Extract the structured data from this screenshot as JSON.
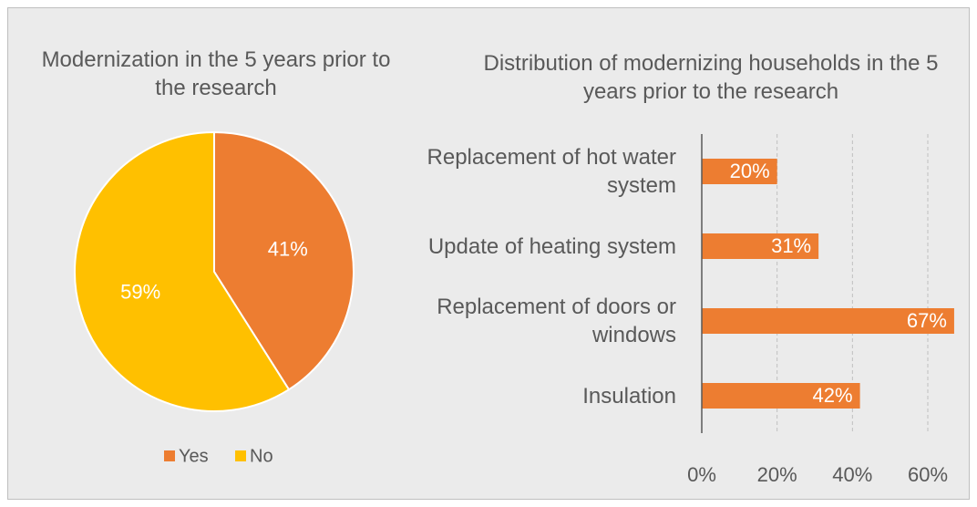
{
  "chart_data": [
    {
      "type": "pie",
      "title": "Modernization in the 5 years prior to the research",
      "categories": [
        "Yes",
        "No"
      ],
      "values": [
        41,
        59
      ],
      "value_labels": [
        "41%",
        "59%"
      ],
      "colors": [
        "#ed7d31",
        "#ffc000"
      ],
      "legend": "bottom"
    },
    {
      "type": "bar",
      "orientation": "horizontal",
      "title": "Distribution of modernizing households in the 5 years prior to the research",
      "categories": [
        "Replacement of hot water system",
        "Update of heating system",
        "Replacement of doors or windows",
        "Insulation"
      ],
      "values": [
        20,
        31,
        67,
        42
      ],
      "value_labels": [
        "20%",
        "31%",
        "67%",
        "42%"
      ],
      "color": "#ed7d31",
      "xlim": [
        0,
        70
      ],
      "xticks": [
        {
          "value": 0,
          "label": "0%"
        },
        {
          "value": 20,
          "label": "20%"
        },
        {
          "value": 40,
          "label": "40%"
        },
        {
          "value": 60,
          "label": "60%"
        }
      ],
      "grid": true
    }
  ]
}
